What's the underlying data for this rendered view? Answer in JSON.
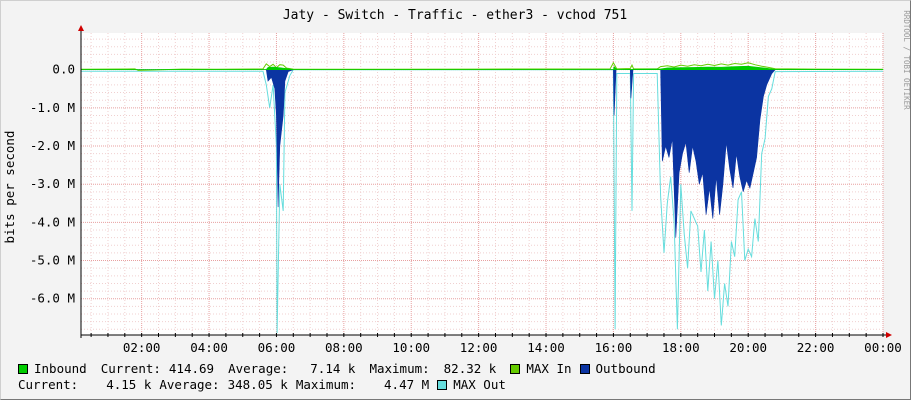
{
  "chart_data": {
    "type": "area",
    "title": "Jaty - Switch - Traffic - ether3 - vchod 751",
    "ylabel": "bits per second",
    "watermark": "RRDTOOL / TOBI OETIKER",
    "x_ticks": [
      "02:00",
      "04:00",
      "06:00",
      "08:00",
      "10:00",
      "12:00",
      "14:00",
      "16:00",
      "18:00",
      "20:00",
      "22:00",
      "00:00"
    ],
    "x_tick_hours": [
      2,
      4,
      6,
      8,
      10,
      12,
      14,
      16,
      18,
      20,
      22,
      24
    ],
    "x_range_hours": [
      0.2,
      24.0
    ],
    "y_ticks": [
      {
        "label": "0.0",
        "value": 0
      },
      {
        "label": "-1.0 M",
        "value": -1000000
      },
      {
        "label": "-2.0 M",
        "value": -2000000
      },
      {
        "label": "-3.0 M",
        "value": -3000000
      },
      {
        "label": "-4.0 M",
        "value": -4000000
      },
      {
        "label": "-5.0 M",
        "value": -5000000
      },
      {
        "label": "-6.0 M",
        "value": -6000000
      }
    ],
    "ylim": [
      -6950000,
      960000
    ],
    "grid": true,
    "series": [
      {
        "name": "MAX Out",
        "color": "#66dddd",
        "style": "line",
        "points": [
          [
            0.2,
            -40000
          ],
          [
            5.6,
            -40000
          ],
          [
            5.7,
            -400000
          ],
          [
            5.8,
            -1000000
          ],
          [
            5.9,
            -400000
          ],
          [
            6.0,
            -2000000
          ],
          [
            6.02,
            -6900000
          ],
          [
            6.1,
            -3000000
          ],
          [
            6.2,
            -3700000
          ],
          [
            6.25,
            -600000
          ],
          [
            6.4,
            -150000
          ],
          [
            6.5,
            0
          ],
          [
            16.0,
            0
          ],
          [
            16.05,
            -6800000
          ],
          [
            16.1,
            -100000
          ],
          [
            16.5,
            -100000
          ],
          [
            16.55,
            -3700000
          ],
          [
            16.6,
            -100000
          ],
          [
            17.3,
            -100000
          ],
          [
            17.4,
            -3300000
          ],
          [
            17.5,
            -4800000
          ],
          [
            17.6,
            -3500000
          ],
          [
            17.7,
            -2800000
          ],
          [
            17.8,
            -4000000
          ],
          [
            17.9,
            -6800000
          ],
          [
            18.0,
            -3000000
          ],
          [
            18.1,
            -4300000
          ],
          [
            18.2,
            -5200000
          ],
          [
            18.3,
            -3700000
          ],
          [
            18.5,
            -4100000
          ],
          [
            18.6,
            -5300000
          ],
          [
            18.7,
            -4200000
          ],
          [
            18.8,
            -5800000
          ],
          [
            18.9,
            -4500000
          ],
          [
            19.0,
            -6000000
          ],
          [
            19.1,
            -5000000
          ],
          [
            19.2,
            -6700000
          ],
          [
            19.3,
            -5600000
          ],
          [
            19.4,
            -6200000
          ],
          [
            19.5,
            -4500000
          ],
          [
            19.6,
            -4900000
          ],
          [
            19.7,
            -3400000
          ],
          [
            19.8,
            -3200000
          ],
          [
            19.9,
            -5000000
          ],
          [
            20.0,
            -4700000
          ],
          [
            20.1,
            -4900000
          ],
          [
            20.2,
            -3900000
          ],
          [
            20.3,
            -4500000
          ],
          [
            20.4,
            -2200000
          ],
          [
            20.5,
            -1800000
          ],
          [
            20.6,
            -700000
          ],
          [
            20.7,
            -500000
          ],
          [
            20.8,
            -50000
          ],
          [
            24.0,
            -40000
          ]
        ]
      },
      {
        "name": "Outbound",
        "color": "#0b34a2",
        "style": "area",
        "points": [
          [
            0.2,
            0
          ],
          [
            5.7,
            0
          ],
          [
            5.75,
            -300000
          ],
          [
            5.85,
            -200000
          ],
          [
            5.95,
            -500000
          ],
          [
            6.0,
            -1200000
          ],
          [
            6.05,
            -3600000
          ],
          [
            6.1,
            -2000000
          ],
          [
            6.2,
            -1200000
          ],
          [
            6.25,
            -300000
          ],
          [
            6.35,
            -50000
          ],
          [
            6.5,
            0
          ],
          [
            16.0,
            0
          ],
          [
            16.02,
            -1200000
          ],
          [
            16.08,
            0
          ],
          [
            16.5,
            0
          ],
          [
            16.52,
            -750000
          ],
          [
            16.58,
            0
          ],
          [
            17.4,
            0
          ],
          [
            17.45,
            -2400000
          ],
          [
            17.55,
            -2000000
          ],
          [
            17.65,
            -2300000
          ],
          [
            17.75,
            -1800000
          ],
          [
            17.85,
            -4400000
          ],
          [
            17.95,
            -2700000
          ],
          [
            18.05,
            -2200000
          ],
          [
            18.15,
            -1900000
          ],
          [
            18.25,
            -2700000
          ],
          [
            18.35,
            -2000000
          ],
          [
            18.45,
            -2400000
          ],
          [
            18.55,
            -3000000
          ],
          [
            18.65,
            -2700000
          ],
          [
            18.75,
            -3800000
          ],
          [
            18.85,
            -3100000
          ],
          [
            18.95,
            -3900000
          ],
          [
            19.05,
            -2800000
          ],
          [
            19.15,
            -3800000
          ],
          [
            19.25,
            -3000000
          ],
          [
            19.35,
            -1900000
          ],
          [
            19.45,
            -2600000
          ],
          [
            19.55,
            -3100000
          ],
          [
            19.65,
            -2200000
          ],
          [
            19.75,
            -2800000
          ],
          [
            19.85,
            -3200000
          ],
          [
            19.95,
            -2900000
          ],
          [
            20.05,
            -3100000
          ],
          [
            20.15,
            -2700000
          ],
          [
            20.25,
            -2300000
          ],
          [
            20.35,
            -1300000
          ],
          [
            20.45,
            -700000
          ],
          [
            20.55,
            -400000
          ],
          [
            20.7,
            -100000
          ],
          [
            20.8,
            0
          ],
          [
            24.0,
            0
          ]
        ]
      },
      {
        "name": "MAX In",
        "color": "#66cc00",
        "style": "line",
        "points": [
          [
            0.2,
            10000
          ],
          [
            1.8,
            20000
          ],
          [
            1.9,
            -20000
          ],
          [
            3.2,
            15000
          ],
          [
            4.2,
            10000
          ],
          [
            5.6,
            20000
          ],
          [
            5.7,
            150000
          ],
          [
            5.8,
            80000
          ],
          [
            5.9,
            140000
          ],
          [
            6.0,
            50000
          ],
          [
            6.1,
            130000
          ],
          [
            6.2,
            120000
          ],
          [
            6.3,
            40000
          ],
          [
            6.5,
            15000
          ],
          [
            9.0,
            10000
          ],
          [
            12.0,
            15000
          ],
          [
            15.9,
            20000
          ],
          [
            16.0,
            180000
          ],
          [
            16.1,
            20000
          ],
          [
            16.5,
            30000
          ],
          [
            16.55,
            120000
          ],
          [
            16.6,
            20000
          ],
          [
            17.3,
            20000
          ],
          [
            17.4,
            80000
          ],
          [
            17.6,
            100000
          ],
          [
            17.8,
            70000
          ],
          [
            18.0,
            120000
          ],
          [
            18.2,
            90000
          ],
          [
            18.4,
            130000
          ],
          [
            18.6,
            100000
          ],
          [
            18.8,
            140000
          ],
          [
            19.0,
            110000
          ],
          [
            19.2,
            150000
          ],
          [
            19.4,
            120000
          ],
          [
            19.6,
            160000
          ],
          [
            19.8,
            140000
          ],
          [
            20.0,
            180000
          ],
          [
            20.2,
            130000
          ],
          [
            20.4,
            90000
          ],
          [
            20.6,
            60000
          ],
          [
            20.8,
            25000
          ],
          [
            22.0,
            15000
          ],
          [
            24.0,
            10000
          ]
        ]
      },
      {
        "name": "Inbound",
        "color": "#00cc00",
        "style": "area",
        "points": [
          [
            0.2,
            5000
          ],
          [
            5.7,
            5000
          ],
          [
            5.75,
            60000
          ],
          [
            5.9,
            70000
          ],
          [
            6.1,
            50000
          ],
          [
            6.3,
            30000
          ],
          [
            6.5,
            5000
          ],
          [
            16.0,
            5000
          ],
          [
            16.02,
            80000
          ],
          [
            16.1,
            5000
          ],
          [
            17.4,
            20000
          ],
          [
            17.6,
            45000
          ],
          [
            18.0,
            55000
          ],
          [
            18.4,
            60000
          ],
          [
            18.8,
            70000
          ],
          [
            19.2,
            65000
          ],
          [
            19.6,
            80000
          ],
          [
            20.0,
            90000
          ],
          [
            20.4,
            50000
          ],
          [
            20.8,
            10000
          ],
          [
            24.0,
            5000
          ]
        ]
      }
    ]
  },
  "legend": {
    "inbound": {
      "label": "Inbound",
      "color": "#00cc00"
    },
    "max_in": {
      "label": "MAX In",
      "color": "#66cc00"
    },
    "outbound": {
      "label": "Outbound",
      "color": "#0b34a2"
    },
    "max_out": {
      "label": "MAX Out",
      "color": "#66dddd"
    },
    "current_label": "Current:",
    "average_label": "Average:",
    "maximum_label": "Maximum:",
    "in_current": "414.69",
    "in_average": "7.14 k",
    "in_maximum": "82.32 k",
    "out_current": "4.15 k",
    "out_average": "348.05 k",
    "out_maximum": "4.47 M"
  }
}
